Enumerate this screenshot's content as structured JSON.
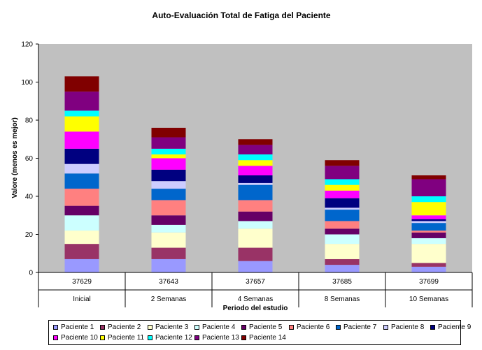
{
  "chart_data": {
    "type": "bar",
    "stacked": true,
    "title": "Auto-Evaluación Total de Fatiga del Paciente",
    "xlabel": "Periodo del estudio",
    "ylabel": "Valore (menos es mejor)",
    "ylim": [
      0,
      120
    ],
    "yticks": [
      0,
      20,
      40,
      60,
      80,
      100,
      120
    ],
    "grid": false,
    "plot_background": "#c0c0c0",
    "legend_position": "bottom",
    "categories": [
      {
        "code": "37629",
        "label": "Inicial"
      },
      {
        "code": "37643",
        "label": "2 Semanas"
      },
      {
        "code": "37657",
        "label": "4 Semanas"
      },
      {
        "code": "37685",
        "label": "8 Semanas"
      },
      {
        "code": "37699",
        "label": "10 Semanas"
      }
    ],
    "series": [
      {
        "name": "Paciente 1",
        "color": "#9999ff",
        "values": [
          7,
          7,
          6,
          4,
          3
        ]
      },
      {
        "name": "Paciente 2",
        "color": "#993366",
        "values": [
          8,
          6,
          7,
          3,
          2
        ]
      },
      {
        "name": "Paciente 3",
        "color": "#ffffcc",
        "values": [
          7,
          8,
          10,
          8,
          10
        ]
      },
      {
        "name": "Paciente 4",
        "color": "#ccffff",
        "values": [
          8,
          4,
          4,
          5,
          3
        ]
      },
      {
        "name": "Paciente 5",
        "color": "#660066",
        "values": [
          5,
          5,
          5,
          3,
          3
        ]
      },
      {
        "name": "Paciente 6",
        "color": "#ff8080",
        "values": [
          9,
          8,
          6,
          4,
          1
        ]
      },
      {
        "name": "Paciente 7",
        "color": "#0066cc",
        "values": [
          8,
          6,
          8,
          6,
          4
        ]
      },
      {
        "name": "Paciente 8",
        "color": "#ccccff",
        "values": [
          5,
          4,
          1,
          1,
          1
        ]
      },
      {
        "name": "Paciente 9",
        "color": "#000080",
        "values": [
          8,
          6,
          4,
          5,
          1
        ]
      },
      {
        "name": "Paciente 10",
        "color": "#ff00ff",
        "values": [
          9,
          6,
          5,
          4,
          2
        ]
      },
      {
        "name": "Paciente 11",
        "color": "#ffff00",
        "values": [
          8,
          2,
          3,
          3,
          7
        ]
      },
      {
        "name": "Paciente 12",
        "color": "#00ffff",
        "values": [
          3,
          3,
          3,
          3,
          3
        ]
      },
      {
        "name": "Paciente 13",
        "color": "#800080",
        "values": [
          10,
          6,
          5,
          7,
          9
        ]
      },
      {
        "name": "Paciente 14",
        "color": "#800000",
        "values": [
          8,
          5,
          3,
          3,
          2
        ]
      }
    ]
  }
}
